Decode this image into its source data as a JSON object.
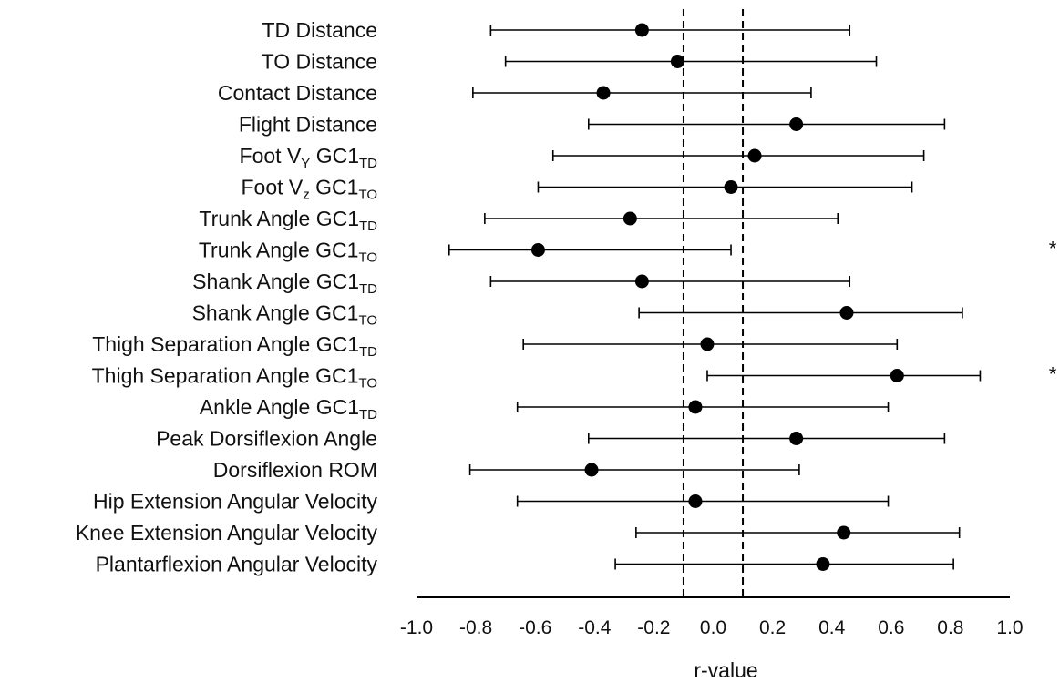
{
  "chart_data": {
    "type": "forest",
    "xlabel": "r-value",
    "xlim": [
      -1.0,
      1.0
    ],
    "x_ticks": [
      "-1.0",
      "-0.8",
      "-0.6",
      "-0.4",
      "-0.2",
      "0.0",
      "0.2",
      "0.4",
      "0.6",
      "0.8",
      "1.0"
    ],
    "reference_lines": [
      -0.1,
      0.1
    ],
    "grid": false,
    "rows": [
      {
        "label": "TD Distance",
        "label_sub": "",
        "label_suffix": "",
        "r": -0.24,
        "ci": [
          -0.75,
          0.46
        ],
        "sig": ""
      },
      {
        "label": "TO Distance",
        "label_sub": "",
        "label_suffix": "",
        "r": -0.12,
        "ci": [
          -0.7,
          0.55
        ],
        "sig": ""
      },
      {
        "label": "Contact Distance",
        "label_sub": "",
        "label_suffix": "",
        "r": -0.37,
        "ci": [
          -0.81,
          0.33
        ],
        "sig": ""
      },
      {
        "label": "Flight Distance",
        "label_sub": "",
        "label_suffix": "",
        "r": 0.28,
        "ci": [
          -0.42,
          0.78
        ],
        "sig": ""
      },
      {
        "label": "Foot V",
        "label_sub": "Y",
        "label_suffix": "TD",
        "r": 0.14,
        "ci": [
          -0.54,
          0.71
        ],
        "sig": ""
      },
      {
        "label": "Foot V",
        "label_sub": "z",
        "label_suffix": "TO",
        "r": 0.06,
        "ci": [
          -0.59,
          0.67
        ],
        "sig": ""
      },
      {
        "label": "Trunk Angle GC1",
        "label_sub": "",
        "label_suffix": "TD",
        "r": -0.28,
        "ci": [
          -0.77,
          0.42
        ],
        "sig": ""
      },
      {
        "label": "Trunk Angle GC1",
        "label_sub": "",
        "label_suffix": "TO",
        "r": -0.59,
        "ci": [
          -0.89,
          0.06
        ],
        "sig": "*"
      },
      {
        "label": "Shank Angle GC1",
        "label_sub": "",
        "label_suffix": "TD",
        "r": -0.24,
        "ci": [
          -0.75,
          0.46
        ],
        "sig": ""
      },
      {
        "label": "Shank Angle GC1",
        "label_sub": "",
        "label_suffix": "TO",
        "r": 0.45,
        "ci": [
          -0.25,
          0.84
        ],
        "sig": ""
      },
      {
        "label": "Thigh Separation Angle GC1",
        "label_sub": "",
        "label_suffix": "TD",
        "r": -0.02,
        "ci": [
          -0.64,
          0.62
        ],
        "sig": ""
      },
      {
        "label": "Thigh Separation Angle GC1",
        "label_sub": "",
        "label_suffix": "TO",
        "r": 0.62,
        "ci": [
          -0.02,
          0.9
        ],
        "sig": "*"
      },
      {
        "label": "Ankle Angle GC1",
        "label_sub": "",
        "label_suffix": "TD",
        "r": -0.06,
        "ci": [
          -0.66,
          0.59
        ],
        "sig": ""
      },
      {
        "label": "Peak Dorsiflexion Angle",
        "label_sub": "",
        "label_suffix": "",
        "r": 0.28,
        "ci": [
          -0.42,
          0.78
        ],
        "sig": ""
      },
      {
        "label": "Dorsiflexion ROM",
        "label_sub": "",
        "label_suffix": "",
        "r": -0.41,
        "ci": [
          -0.82,
          0.29
        ],
        "sig": ""
      },
      {
        "label": "Hip Extension Angular Velocity",
        "label_sub": "",
        "label_suffix": "",
        "r": -0.06,
        "ci": [
          -0.66,
          0.59
        ],
        "sig": ""
      },
      {
        "label": "Knee Extension Angular Velocity",
        "label_sub": "",
        "label_suffix": "",
        "r": 0.44,
        "ci": [
          -0.26,
          0.83
        ],
        "sig": ""
      },
      {
        "label": "Plantarflexion Angular Velocity",
        "label_sub": "",
        "label_suffix": "",
        "r": 0.37,
        "ci": [
          -0.33,
          0.81
        ],
        "sig": ""
      }
    ]
  }
}
